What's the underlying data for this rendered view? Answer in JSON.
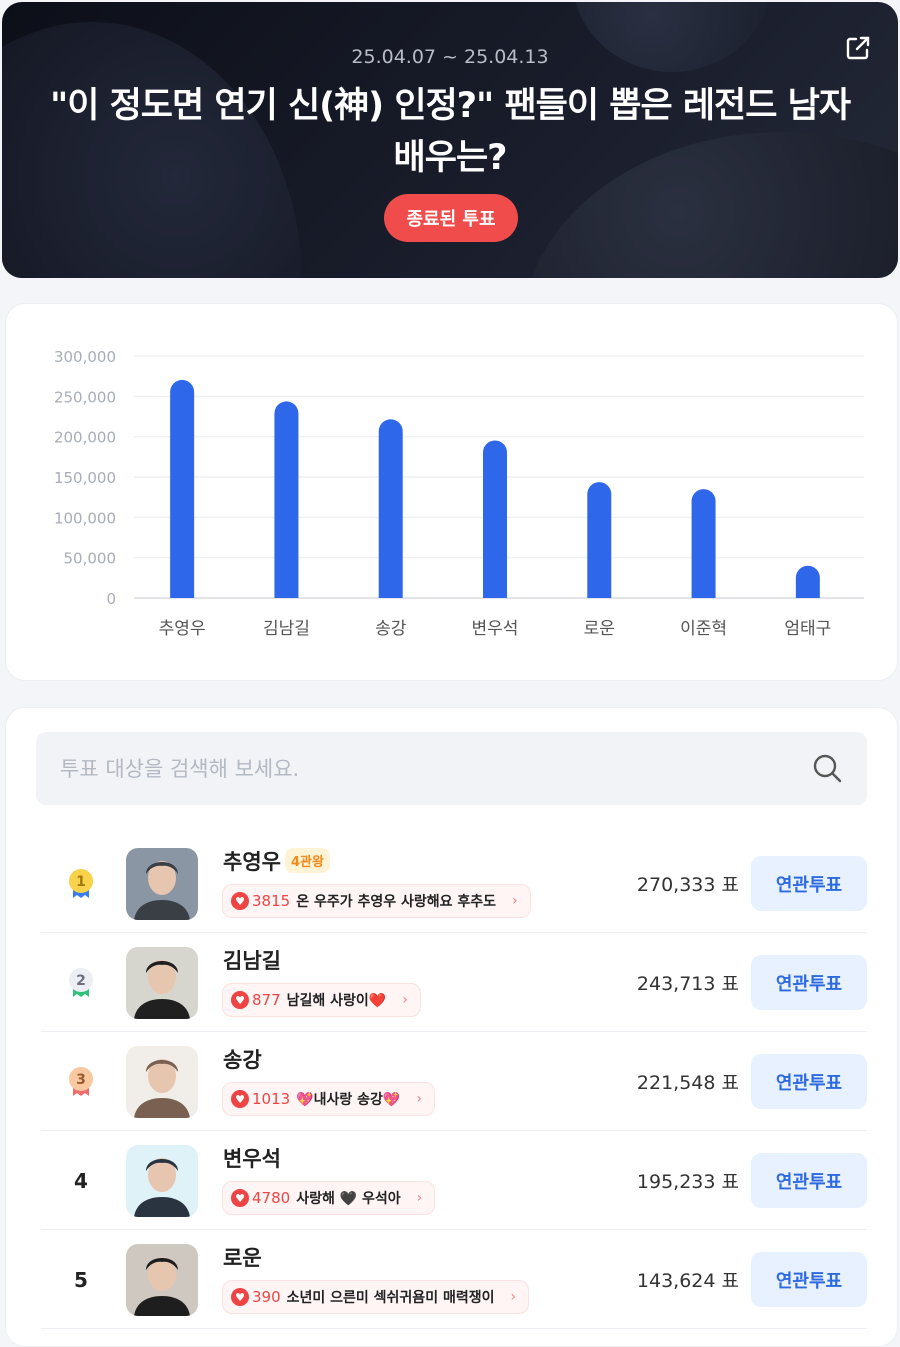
{
  "header": {
    "date_range": "25.04.07 ~ 25.04.13",
    "title": "\"이 정도면 연기 신(神) 인정?\" 팬들이 뽑은 레전드 남자 배우는?",
    "status_button": "종료된 투표",
    "share_icon": "share-external-icon"
  },
  "chart_data": {
    "type": "bar",
    "categories": [
      "추영우",
      "김남길",
      "송강",
      "변우석",
      "로운",
      "이준혁",
      "엄태구"
    ],
    "values": [
      270333,
      243713,
      221548,
      195233,
      143624,
      135000,
      40000
    ],
    "ylim": [
      0,
      300000
    ],
    "yticks": [
      "0",
      "50,000",
      "100,000",
      "150,000",
      "200,000",
      "250,000",
      "300,000"
    ],
    "grid": true,
    "bar_color": "#2f67eb"
  },
  "search": {
    "placeholder": "투표 대상을 검색해 보세요.",
    "value": ""
  },
  "ranking": [
    {
      "rank": "1",
      "medal": "gold",
      "name": "추영우",
      "badge": "4관왕",
      "comment_count": "3815",
      "comment": "온 우주가 추영우 사랑해요 후추도",
      "votes": "270,333 표",
      "button": "연관투표",
      "avatar_colors": [
        "#8a96a3",
        "#3a3f46"
      ]
    },
    {
      "rank": "2",
      "medal": "silver",
      "name": "김남길",
      "badge": "",
      "comment_count": "877",
      "comment": "남길해 사랑이❤️",
      "votes": "243,713 표",
      "button": "연관투표",
      "avatar_colors": [
        "#d6d6cf",
        "#202020"
      ]
    },
    {
      "rank": "3",
      "medal": "bronze",
      "name": "송강",
      "badge": "",
      "comment_count": "1013",
      "comment": "💖내사랑 송강💖",
      "votes": "221,548 표",
      "button": "연관투표",
      "avatar_colors": [
        "#f1ede8",
        "#7a6050"
      ]
    },
    {
      "rank": "4",
      "medal": "",
      "name": "변우석",
      "badge": "",
      "comment_count": "4780",
      "comment": "사랑해 🖤 우석아",
      "votes": "195,233 표",
      "button": "연관투표",
      "avatar_colors": [
        "#dff2f7",
        "#2a3340"
      ]
    },
    {
      "rank": "5",
      "medal": "",
      "name": "로운",
      "badge": "",
      "comment_count": "390",
      "comment": "소년미 으른미 섹쉬귀욤미 매력쟁이",
      "votes": "143,624 표",
      "button": "연관투표",
      "avatar_colors": [
        "#cfc8c0",
        "#1e1e1e"
      ]
    }
  ]
}
